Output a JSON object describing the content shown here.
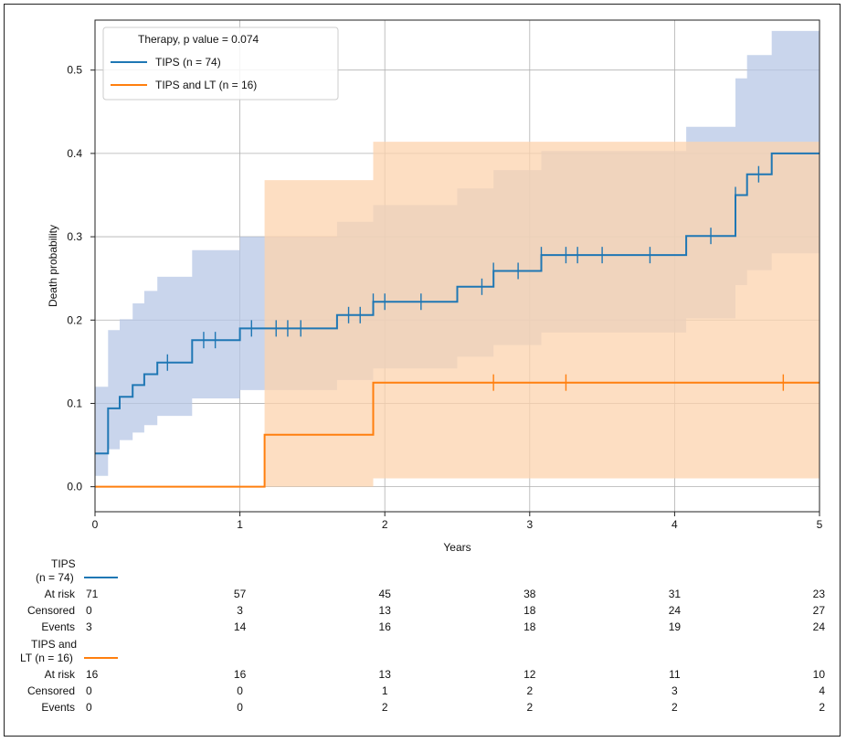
{
  "chart_data": {
    "type": "line",
    "subtype": "kaplan-meier cumulative incidence step plot",
    "title": "",
    "xlabel": "Years",
    "ylabel": "Death probability",
    "xlim": [
      0,
      5
    ],
    "ylim": [
      -0.03,
      0.56
    ],
    "xticks": [
      0,
      1,
      2,
      3,
      4,
      5
    ],
    "yticks": [
      0.0,
      0.1,
      0.2,
      0.3,
      0.4,
      0.5
    ],
    "xtick_labels": [
      "0",
      "1",
      "2",
      "3",
      "4",
      "5"
    ],
    "ytick_labels": [
      "0.0",
      "0.1",
      "0.2",
      "0.3",
      "0.4",
      "0.5"
    ],
    "grid": true,
    "legend": {
      "title": "Therapy, p value = 0.074",
      "placement": "top-left",
      "entries": [
        "TIPS (n = 74)",
        "TIPS and LT (n = 16)"
      ]
    },
    "series": [
      {
        "name": "TIPS (n = 74)",
        "color": "#1f77b4",
        "ci_color": "#b7c7e6",
        "step_x": [
          0,
          0.09,
          0.17,
          0.26,
          0.34,
          0.43,
          0.67,
          1.0,
          1.67,
          1.92,
          2.5,
          2.75,
          3.08,
          4.08,
          4.42,
          4.5,
          4.67,
          5.0
        ],
        "step_y": [
          0.04,
          0.094,
          0.108,
          0.122,
          0.135,
          0.149,
          0.176,
          0.19,
          0.206,
          0.222,
          0.24,
          0.259,
          0.278,
          0.301,
          0.35,
          0.375,
          0.4,
          0.4
        ],
        "ci_lower": [
          0.013,
          0.045,
          0.056,
          0.065,
          0.074,
          0.085,
          0.106,
          0.116,
          0.128,
          0.142,
          0.156,
          0.17,
          0.185,
          0.202,
          0.242,
          0.26,
          0.28,
          0.28
        ],
        "ci_upper": [
          0.12,
          0.188,
          0.201,
          0.22,
          0.235,
          0.252,
          0.284,
          0.3,
          0.318,
          0.338,
          0.358,
          0.38,
          0.403,
          0.432,
          0.49,
          0.518,
          0.547,
          0.547
        ],
        "censor_x": [
          0.5,
          0.75,
          0.83,
          1.08,
          1.25,
          1.33,
          1.42,
          1.75,
          1.83,
          1.92,
          2.0,
          2.25,
          2.67,
          2.75,
          2.92,
          3.08,
          3.25,
          3.33,
          3.5,
          3.83,
          4.25,
          4.42,
          4.58
        ],
        "censor_y": [
          0.149,
          0.176,
          0.176,
          0.19,
          0.19,
          0.19,
          0.19,
          0.206,
          0.206,
          0.222,
          0.222,
          0.222,
          0.24,
          0.259,
          0.259,
          0.278,
          0.278,
          0.278,
          0.278,
          0.278,
          0.301,
          0.35,
          0.375
        ]
      },
      {
        "name": "TIPS and LT (n = 16)",
        "color": "#ff7f0e",
        "ci_color": "#fcd3ad",
        "step_x": [
          0,
          1.17,
          1.92,
          5.0
        ],
        "step_y": [
          0.0,
          0.0625,
          0.125,
          0.125
        ],
        "ci_lower": [
          0.0,
          0.0,
          0.01,
          0.033
        ],
        "ci_upper": [
          0.0,
          0.368,
          0.414,
          0.414
        ],
        "ci_lower_steps": [
          [
            1.17,
            0.0
          ],
          [
            1.92,
            0.01
          ],
          [
            5.0,
            0.033
          ]
        ],
        "censor_x": [
          2.75,
          3.25,
          4.75
        ],
        "censor_y": [
          0.125,
          0.125,
          0.125
        ]
      }
    ],
    "risk_table": {
      "time_points": [
        0,
        1,
        2,
        3,
        4,
        5
      ],
      "row_labels": [
        "At risk",
        "Censored",
        "Events"
      ],
      "groups": [
        {
          "label_lines": [
            "TIPS",
            "(n = 74)"
          ],
          "color": "#1f77b4",
          "at_risk": [
            "71",
            "57",
            "45",
            "38",
            "31",
            "23"
          ],
          "censored": [
            "0",
            "3",
            "13",
            "18",
            "24",
            "27"
          ],
          "events": [
            "3",
            "14",
            "16",
            "18",
            "19",
            "24"
          ]
        },
        {
          "label_lines": [
            "TIPS and",
            "LT (n = 16)"
          ],
          "color": "#ff7f0e",
          "at_risk": [
            "16",
            "16",
            "13",
            "12",
            "11",
            "10"
          ],
          "censored": [
            "0",
            "0",
            "1",
            "2",
            "3",
            "4"
          ],
          "events": [
            "0",
            "0",
            "2",
            "2",
            "2",
            "2"
          ]
        }
      ]
    }
  }
}
